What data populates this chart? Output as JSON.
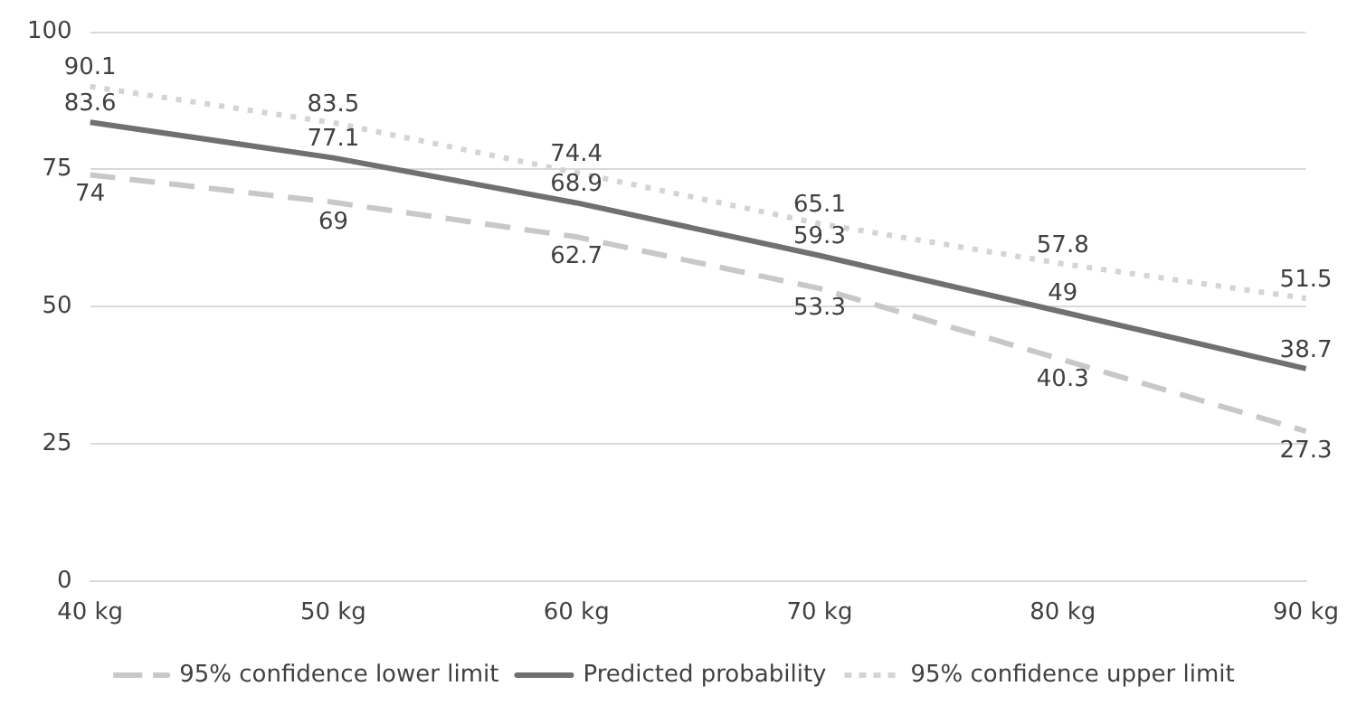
{
  "chart_data": {
    "type": "line",
    "categories": [
      "40 kg",
      "50 kg",
      "60 kg",
      "70 kg",
      "80 kg",
      "90 kg"
    ],
    "series": [
      {
        "name": "95% confidence lower limit",
        "color": "#c8c8c8",
        "line_style": "dashed",
        "values": [
          74,
          69,
          62.7,
          53.3,
          40.3,
          27.3
        ]
      },
      {
        "name": "Predicted probability",
        "color": "#707070",
        "line_style": "solid",
        "values": [
          83.6,
          77.1,
          68.9,
          59.3,
          49,
          38.7
        ]
      },
      {
        "name": "95% confidence upper limit",
        "color": "#d4d4d4",
        "line_style": "dotted",
        "values": [
          90.1,
          83.5,
          74.4,
          65.1,
          57.8,
          51.5
        ]
      }
    ],
    "ylim": [
      0,
      100
    ],
    "yticks": [
      0,
      25,
      50,
      75,
      100
    ],
    "grid": "y",
    "legend": "bottom",
    "marker": "none",
    "data_labels": true
  }
}
